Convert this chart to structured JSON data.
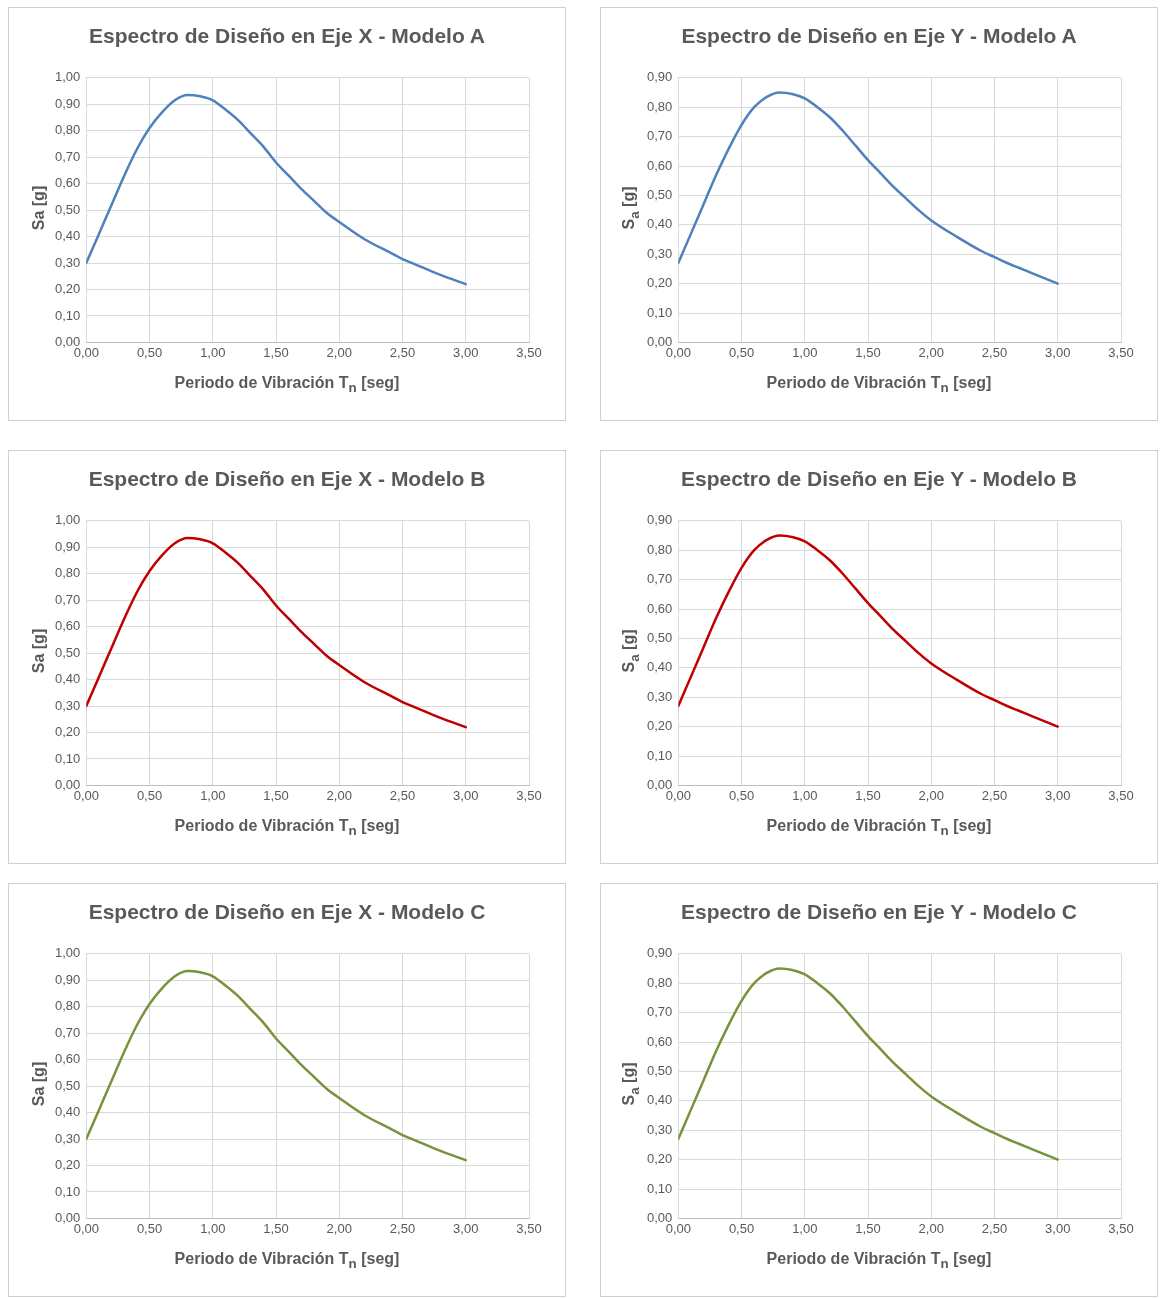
{
  "chart_data": [
    {
      "type": "line",
      "title": "Espectro de Diseño en Eje X - Modelo A",
      "xlabel": "Periodo de Vibración T$_{n}$ [seg]",
      "ylabel": "Sa [g]",
      "grid": true,
      "legend": false,
      "marker": "none",
      "line_style": "solid",
      "x": [
        0,
        0.1,
        0.2,
        0.3,
        0.4,
        0.5,
        0.6,
        0.7,
        0.8,
        0.9,
        1.0,
        1.1,
        1.2,
        1.3,
        1.4,
        1.5,
        1.6,
        1.7,
        1.8,
        1.9,
        2.0,
        2.2,
        2.4,
        2.5,
        2.6,
        2.8,
        3.0
      ],
      "series": [
        {
          "color": "#4f81bd",
          "values": [
            0.3,
            0.41,
            0.52,
            0.63,
            0.73,
            0.81,
            0.87,
            0.915,
            0.935,
            0.93,
            0.915,
            0.88,
            0.84,
            0.79,
            0.74,
            0.68,
            0.63,
            0.58,
            0.535,
            0.49,
            0.455,
            0.39,
            0.34,
            0.315,
            0.295,
            0.255,
            0.22
          ]
        }
      ],
      "xlim": [
        0,
        3.5
      ],
      "xticks": [
        {
          "value": 0,
          "label": "0,00"
        },
        {
          "value": 0.5,
          "label": "0,50"
        },
        {
          "value": 1,
          "label": "1,00"
        },
        {
          "value": 1.5,
          "label": "1,50"
        },
        {
          "value": 2,
          "label": "2,00"
        },
        {
          "value": 2.5,
          "label": "2,50"
        },
        {
          "value": 3,
          "label": "3,00"
        },
        {
          "value": 3.5,
          "label": "3,50"
        }
      ],
      "ylim": [
        0,
        1
      ],
      "yticks": [
        {
          "value": 0,
          "label": "0,00"
        },
        {
          "value": 0.1,
          "label": "0,10"
        },
        {
          "value": 0.2,
          "label": "0,20"
        },
        {
          "value": 0.3,
          "label": "0,30"
        },
        {
          "value": 0.4,
          "label": "0,40"
        },
        {
          "value": 0.5,
          "label": "0,50"
        },
        {
          "value": 0.6,
          "label": "0,60"
        },
        {
          "value": 0.7,
          "label": "0,70"
        },
        {
          "value": 0.8,
          "label": "0,80"
        },
        {
          "value": 0.9,
          "label": "0,90"
        },
        {
          "value": 1,
          "label": "1,00"
        }
      ]
    },
    {
      "type": "line",
      "title": "Espectro de Diseño en Eje Y - Modelo A",
      "xlabel": "Periodo de Vibración T$_{n}$ [seg]",
      "ylabel": "S$_{a}$ [g]",
      "grid": true,
      "legend": false,
      "marker": "none",
      "line_style": "solid",
      "x": [
        0,
        0.1,
        0.2,
        0.3,
        0.4,
        0.5,
        0.6,
        0.7,
        0.8,
        0.9,
        1.0,
        1.1,
        1.2,
        1.3,
        1.4,
        1.5,
        1.6,
        1.7,
        1.8,
        1.9,
        2.0,
        2.2,
        2.4,
        2.5,
        2.6,
        2.8,
        3.0
      ],
      "series": [
        {
          "color": "#4f81bd",
          "values": [
            0.27,
            0.37,
            0.47,
            0.57,
            0.66,
            0.74,
            0.8,
            0.835,
            0.85,
            0.845,
            0.83,
            0.8,
            0.765,
            0.72,
            0.67,
            0.62,
            0.575,
            0.53,
            0.49,
            0.45,
            0.415,
            0.36,
            0.31,
            0.29,
            0.27,
            0.235,
            0.2
          ]
        }
      ],
      "xlim": [
        0,
        3.5
      ],
      "xticks": [
        {
          "value": 0,
          "label": "0,00"
        },
        {
          "value": 0.5,
          "label": "0,50"
        },
        {
          "value": 1,
          "label": "1,00"
        },
        {
          "value": 1.5,
          "label": "1,50"
        },
        {
          "value": 2,
          "label": "2,00"
        },
        {
          "value": 2.5,
          "label": "2,50"
        },
        {
          "value": 3,
          "label": "3,00"
        },
        {
          "value": 3.5,
          "label": "3,50"
        }
      ],
      "ylim": [
        0,
        0.9
      ],
      "yticks": [
        {
          "value": 0,
          "label": "0,00"
        },
        {
          "value": 0.1,
          "label": "0,10"
        },
        {
          "value": 0.2,
          "label": "0,20"
        },
        {
          "value": 0.3,
          "label": "0,30"
        },
        {
          "value": 0.4,
          "label": "0,40"
        },
        {
          "value": 0.5,
          "label": "0,50"
        },
        {
          "value": 0.6,
          "label": "0,60"
        },
        {
          "value": 0.7,
          "label": "0,70"
        },
        {
          "value": 0.8,
          "label": "0,80"
        },
        {
          "value": 0.9,
          "label": "0,90"
        }
      ]
    },
    {
      "type": "line",
      "title": "Espectro de Diseño en Eje X - Modelo B",
      "xlabel": "Periodo de Vibración T$_{n}$ [seg]",
      "ylabel": "Sa [g]",
      "grid": true,
      "legend": false,
      "marker": "none",
      "line_style": "solid",
      "x": [
        0,
        0.1,
        0.2,
        0.3,
        0.4,
        0.5,
        0.6,
        0.7,
        0.8,
        0.9,
        1.0,
        1.1,
        1.2,
        1.3,
        1.4,
        1.5,
        1.6,
        1.7,
        1.8,
        1.9,
        2.0,
        2.2,
        2.4,
        2.5,
        2.6,
        2.8,
        3.0
      ],
      "series": [
        {
          "color": "#c00000",
          "values": [
            0.3,
            0.41,
            0.52,
            0.63,
            0.73,
            0.81,
            0.87,
            0.915,
            0.935,
            0.93,
            0.915,
            0.88,
            0.84,
            0.79,
            0.74,
            0.68,
            0.63,
            0.58,
            0.535,
            0.49,
            0.455,
            0.39,
            0.34,
            0.315,
            0.295,
            0.255,
            0.22
          ]
        }
      ],
      "xlim": [
        0,
        3.5
      ],
      "xticks": [
        {
          "value": 0,
          "label": "0,00"
        },
        {
          "value": 0.5,
          "label": "0,50"
        },
        {
          "value": 1,
          "label": "1,00"
        },
        {
          "value": 1.5,
          "label": "1,50"
        },
        {
          "value": 2,
          "label": "2,00"
        },
        {
          "value": 2.5,
          "label": "2,50"
        },
        {
          "value": 3,
          "label": "3,00"
        },
        {
          "value": 3.5,
          "label": "3,50"
        }
      ],
      "ylim": [
        0,
        1
      ],
      "yticks": [
        {
          "value": 0,
          "label": "0,00"
        },
        {
          "value": 0.1,
          "label": "0,10"
        },
        {
          "value": 0.2,
          "label": "0,20"
        },
        {
          "value": 0.3,
          "label": "0,30"
        },
        {
          "value": 0.4,
          "label": "0,40"
        },
        {
          "value": 0.5,
          "label": "0,50"
        },
        {
          "value": 0.6,
          "label": "0,60"
        },
        {
          "value": 0.7,
          "label": "0,70"
        },
        {
          "value": 0.8,
          "label": "0,80"
        },
        {
          "value": 0.9,
          "label": "0,90"
        },
        {
          "value": 1,
          "label": "1,00"
        }
      ]
    },
    {
      "type": "line",
      "title": "Espectro de Diseño en Eje Y - Modelo B",
      "xlabel": "Periodo de Vibración T$_{n}$ [seg]",
      "ylabel": "S$_{a}$ [g]",
      "grid": true,
      "legend": false,
      "marker": "none",
      "line_style": "solid",
      "x": [
        0,
        0.1,
        0.2,
        0.3,
        0.4,
        0.5,
        0.6,
        0.7,
        0.8,
        0.9,
        1.0,
        1.1,
        1.2,
        1.3,
        1.4,
        1.5,
        1.6,
        1.7,
        1.8,
        1.9,
        2.0,
        2.2,
        2.4,
        2.5,
        2.6,
        2.8,
        3.0
      ],
      "series": [
        {
          "color": "#c00000",
          "values": [
            0.27,
            0.37,
            0.47,
            0.57,
            0.66,
            0.74,
            0.8,
            0.835,
            0.85,
            0.845,
            0.83,
            0.8,
            0.765,
            0.72,
            0.67,
            0.62,
            0.575,
            0.53,
            0.49,
            0.45,
            0.415,
            0.36,
            0.31,
            0.29,
            0.27,
            0.235,
            0.2
          ]
        }
      ],
      "xlim": [
        0,
        3.5
      ],
      "xticks": [
        {
          "value": 0,
          "label": "0,00"
        },
        {
          "value": 0.5,
          "label": "0,50"
        },
        {
          "value": 1,
          "label": "1,00"
        },
        {
          "value": 1.5,
          "label": "1,50"
        },
        {
          "value": 2,
          "label": "2,00"
        },
        {
          "value": 2.5,
          "label": "2,50"
        },
        {
          "value": 3,
          "label": "3,00"
        },
        {
          "value": 3.5,
          "label": "3,50"
        }
      ],
      "ylim": [
        0,
        0.9
      ],
      "yticks": [
        {
          "value": 0,
          "label": "0,00"
        },
        {
          "value": 0.1,
          "label": "0,10"
        },
        {
          "value": 0.2,
          "label": "0,20"
        },
        {
          "value": 0.3,
          "label": "0,30"
        },
        {
          "value": 0.4,
          "label": "0,40"
        },
        {
          "value": 0.5,
          "label": "0,50"
        },
        {
          "value": 0.6,
          "label": "0,60"
        },
        {
          "value": 0.7,
          "label": "0,70"
        },
        {
          "value": 0.8,
          "label": "0,80"
        },
        {
          "value": 0.9,
          "label": "0,90"
        }
      ]
    },
    {
      "type": "line",
      "title": "Espectro de Diseño en Eje X - Modelo C",
      "xlabel": "Periodo de Vibración T$_{n}$ [seg]",
      "ylabel": "Sa [g]",
      "grid": true,
      "legend": false,
      "marker": "none",
      "line_style": "solid",
      "x": [
        0,
        0.1,
        0.2,
        0.3,
        0.4,
        0.5,
        0.6,
        0.7,
        0.8,
        0.9,
        1.0,
        1.1,
        1.2,
        1.3,
        1.4,
        1.5,
        1.6,
        1.7,
        1.8,
        1.9,
        2.0,
        2.2,
        2.4,
        2.5,
        2.6,
        2.8,
        3.0
      ],
      "series": [
        {
          "color": "#77933c",
          "values": [
            0.3,
            0.41,
            0.52,
            0.63,
            0.73,
            0.81,
            0.87,
            0.915,
            0.935,
            0.93,
            0.915,
            0.88,
            0.84,
            0.79,
            0.74,
            0.68,
            0.63,
            0.58,
            0.535,
            0.49,
            0.455,
            0.39,
            0.34,
            0.315,
            0.295,
            0.255,
            0.22
          ]
        }
      ],
      "xlim": [
        0,
        3.5
      ],
      "xticks": [
        {
          "value": 0,
          "label": "0,00"
        },
        {
          "value": 0.5,
          "label": "0,50"
        },
        {
          "value": 1,
          "label": "1,00"
        },
        {
          "value": 1.5,
          "label": "1,50"
        },
        {
          "value": 2,
          "label": "2,00"
        },
        {
          "value": 2.5,
          "label": "2,50"
        },
        {
          "value": 3,
          "label": "3,00"
        },
        {
          "value": 3.5,
          "label": "3,50"
        }
      ],
      "ylim": [
        0,
        1
      ],
      "yticks": [
        {
          "value": 0,
          "label": "0,00"
        },
        {
          "value": 0.1,
          "label": "0,10"
        },
        {
          "value": 0.2,
          "label": "0,20"
        },
        {
          "value": 0.3,
          "label": "0,30"
        },
        {
          "value": 0.4,
          "label": "0,40"
        },
        {
          "value": 0.5,
          "label": "0,50"
        },
        {
          "value": 0.6,
          "label": "0,60"
        },
        {
          "value": 0.7,
          "label": "0,70"
        },
        {
          "value": 0.8,
          "label": "0,80"
        },
        {
          "value": 0.9,
          "label": "0,90"
        },
        {
          "value": 1,
          "label": "1,00"
        }
      ]
    },
    {
      "type": "line",
      "title": "Espectro de Diseño en Eje Y - Modelo C",
      "xlabel": "Periodo de Vibración T$_{n}$ [seg]",
      "ylabel": "S$_{a}$ [g]",
      "grid": true,
      "legend": false,
      "marker": "none",
      "line_style": "solid",
      "x": [
        0,
        0.1,
        0.2,
        0.3,
        0.4,
        0.5,
        0.6,
        0.7,
        0.8,
        0.9,
        1.0,
        1.1,
        1.2,
        1.3,
        1.4,
        1.5,
        1.6,
        1.7,
        1.8,
        1.9,
        2.0,
        2.2,
        2.4,
        2.5,
        2.6,
        2.8,
        3.0
      ],
      "series": [
        {
          "color": "#77933c",
          "values": [
            0.27,
            0.37,
            0.47,
            0.57,
            0.66,
            0.74,
            0.8,
            0.835,
            0.85,
            0.845,
            0.83,
            0.8,
            0.765,
            0.72,
            0.67,
            0.62,
            0.575,
            0.53,
            0.49,
            0.45,
            0.415,
            0.36,
            0.31,
            0.29,
            0.27,
            0.235,
            0.2
          ]
        }
      ],
      "xlim": [
        0,
        3.5
      ],
      "xticks": [
        {
          "value": 0,
          "label": "0,00"
        },
        {
          "value": 0.5,
          "label": "0,50"
        },
        {
          "value": 1,
          "label": "1,00"
        },
        {
          "value": 1.5,
          "label": "1,50"
        },
        {
          "value": 2,
          "label": "2,00"
        },
        {
          "value": 2.5,
          "label": "2,50"
        },
        {
          "value": 3,
          "label": "3,00"
        },
        {
          "value": 3.5,
          "label": "3,50"
        }
      ],
      "ylim": [
        0,
        0.9
      ],
      "yticks": [
        {
          "value": 0,
          "label": "0,00"
        },
        {
          "value": 0.1,
          "label": "0,10"
        },
        {
          "value": 0.2,
          "label": "0,20"
        },
        {
          "value": 0.3,
          "label": "0,30"
        },
        {
          "value": 0.4,
          "label": "0,40"
        },
        {
          "value": 0.5,
          "label": "0,50"
        },
        {
          "value": 0.6,
          "label": "0,60"
        },
        {
          "value": 0.7,
          "label": "0,70"
        },
        {
          "value": 0.8,
          "label": "0,80"
        },
        {
          "value": 0.9,
          "label": "0,90"
        }
      ]
    }
  ]
}
